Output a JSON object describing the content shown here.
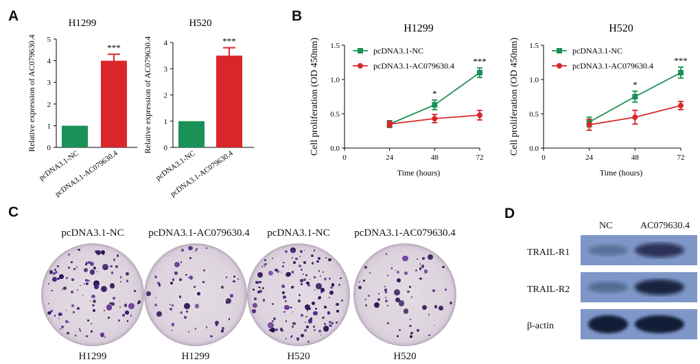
{
  "panels": {
    "a": "A",
    "b": "B",
    "c": "C",
    "d": "D"
  },
  "chart_data": [
    {
      "id": "A1",
      "type": "bar",
      "title": "H1299",
      "ylabel": "Relative expression of AC079630.4",
      "xlabel": "",
      "ylim": [
        0,
        5
      ],
      "yticks": [
        "0",
        "1",
        "2",
        "3",
        "4",
        "5"
      ],
      "categories": [
        "pcDNA3.1-NC",
        "pcDNA3.1-AC079630.4"
      ],
      "values": [
        1.0,
        4.0
      ],
      "errors": [
        0,
        0.3
      ],
      "colors": [
        "#1a9156",
        "#d9262a"
      ],
      "annotations": [
        "",
        "***"
      ]
    },
    {
      "id": "A2",
      "type": "bar",
      "title": "H520",
      "ylabel": "Relative expression of AC079630.4",
      "xlabel": "",
      "ylim": [
        0,
        4
      ],
      "yticks": [
        "0",
        "1",
        "2",
        "3",
        "4"
      ],
      "categories": [
        "pcDNA3.1-NC",
        "pcDNA3.1-AC079630.4"
      ],
      "values": [
        1.0,
        3.5
      ],
      "errors": [
        0,
        0.3
      ],
      "colors": [
        "#1a9156",
        "#d9262a"
      ],
      "annotations": [
        "",
        "***"
      ]
    },
    {
      "id": "B1",
      "type": "line",
      "title": "H1299",
      "xlabel": "Time (hours)",
      "ylabel": "Cell proliferation (OD 450nm)",
      "xlim": [
        0,
        72
      ],
      "xticks": [
        "0",
        "24",
        "48",
        "72"
      ],
      "ylim": [
        0,
        1.5
      ],
      "yticks": [
        "0.0",
        "0.5",
        "1.0",
        "1.5"
      ],
      "x": [
        24,
        48,
        72
      ],
      "series": [
        {
          "name": "pcDNA3.1-NC",
          "values": [
            0.35,
            0.63,
            1.1
          ],
          "errors": [
            0.05,
            0.07,
            0.07
          ],
          "color": "#1a9156",
          "marker": "square"
        },
        {
          "name": "pcDNA3.1-AC079630.4",
          "values": [
            0.35,
            0.43,
            0.48
          ],
          "errors": [
            0.04,
            0.06,
            0.07
          ],
          "color": "#d9262a",
          "marker": "circle"
        }
      ],
      "annotations": [
        "",
        "*",
        "***"
      ],
      "legend": "top-left"
    },
    {
      "id": "B2",
      "type": "line",
      "title": "H520",
      "xlabel": "Time (hours)",
      "ylabel": "Cell proliferation (OD 450nm)",
      "xlim": [
        0,
        72
      ],
      "xticks": [
        "0",
        "24",
        "48",
        "72"
      ],
      "ylim": [
        0,
        1.5
      ],
      "yticks": [
        "0.0",
        "0.5",
        "1.0",
        "1.5"
      ],
      "x": [
        24,
        48,
        72
      ],
      "series": [
        {
          "name": "pcDNA3.1-NC",
          "values": [
            0.38,
            0.75,
            1.1
          ],
          "errors": [
            0.07,
            0.08,
            0.08
          ],
          "color": "#1a9156",
          "marker": "square"
        },
        {
          "name": "pcDNA3.1-AC079630.4",
          "values": [
            0.34,
            0.45,
            0.62
          ],
          "errors": [
            0.08,
            0.1,
            0.06
          ],
          "color": "#d9262a",
          "marker": "circle"
        }
      ],
      "annotations": [
        "",
        "*",
        "***"
      ],
      "legend": "top-left"
    }
  ],
  "colony": {
    "top_labels": [
      "pcDNA3.1-NC",
      "pcDNA3.1-AC079630.4",
      "pcDNA3.1-NC",
      "pcDNA3.1-AC079630.4"
    ],
    "bottom_labels": [
      "H1299",
      "H1299",
      "H520",
      "H520"
    ],
    "densities": [
      110,
      55,
      140,
      60
    ]
  },
  "blot": {
    "columns": [
      "NC",
      "AC079630.4"
    ],
    "rows": [
      "TRAIL-R1",
      "TRAIL-R2",
      "β-actin"
    ],
    "band_intensity": [
      [
        0.3,
        0.75
      ],
      [
        0.35,
        0.9
      ],
      [
        1.0,
        1.0
      ]
    ]
  }
}
